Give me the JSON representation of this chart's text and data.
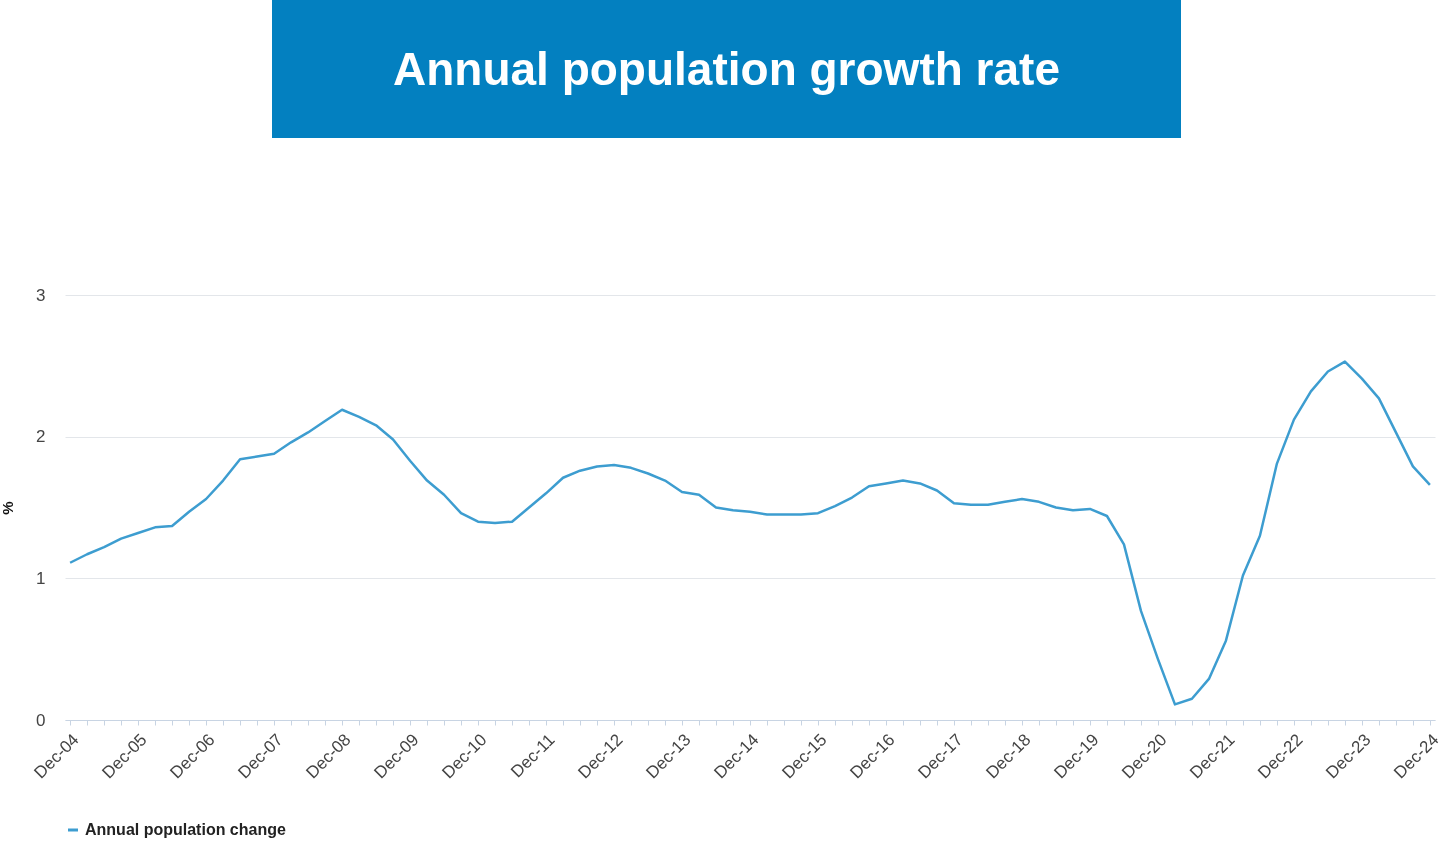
{
  "chart_data": {
    "type": "line",
    "title": "Annual population growth rate",
    "ylabel": "%",
    "categories": [
      "Dec-04",
      null,
      null,
      null,
      "Dec-05",
      null,
      null,
      null,
      "Dec-06",
      null,
      null,
      null,
      "Dec-07",
      null,
      null,
      null,
      "Dec-08",
      null,
      null,
      null,
      "Dec-09",
      null,
      null,
      null,
      "Dec-10",
      null,
      null,
      null,
      "Dec-11",
      null,
      null,
      null,
      "Dec-12",
      null,
      null,
      null,
      "Dec-13",
      null,
      null,
      null,
      "Dec-14",
      null,
      null,
      null,
      "Dec-15",
      null,
      null,
      null,
      "Dec-16",
      null,
      null,
      null,
      "Dec-17",
      null,
      null,
      null,
      "Dec-18",
      null,
      null,
      null,
      "Dec-19",
      null,
      null,
      null,
      "Dec-20",
      null,
      null,
      null,
      "Dec-21",
      null,
      null,
      null,
      "Dec-22",
      null,
      null,
      null,
      "Dec-23",
      null,
      null,
      null,
      "Dec-24"
    ],
    "series": [
      {
        "name": "Annual population change",
        "color": "#3d9dd0",
        "values": [
          1.11,
          1.17,
          1.22,
          1.28,
          1.32,
          1.36,
          1.37,
          1.47,
          1.56,
          1.69,
          1.84,
          1.86,
          1.88,
          1.96,
          2.03,
          2.11,
          2.19,
          2.14,
          2.08,
          1.98,
          1.83,
          1.69,
          1.59,
          1.46,
          1.4,
          1.39,
          1.4,
          1.5,
          1.6,
          1.71,
          1.76,
          1.79,
          1.8,
          1.78,
          1.74,
          1.69,
          1.61,
          1.59,
          1.5,
          1.48,
          1.47,
          1.45,
          1.45,
          1.45,
          1.46,
          1.51,
          1.57,
          1.65,
          1.67,
          1.69,
          1.67,
          1.62,
          1.53,
          1.52,
          1.52,
          1.54,
          1.56,
          1.54,
          1.5,
          1.48,
          1.49,
          1.44,
          1.24,
          0.77,
          0.43,
          0.11,
          0.15,
          0.29,
          0.56,
          1.02,
          1.3,
          1.81,
          2.12,
          2.32,
          2.46,
          2.53,
          2.41,
          2.27,
          2.03,
          1.79,
          1.66
        ]
      }
    ],
    "ylim": [
      0,
      3
    ],
    "yticks": [
      0,
      1,
      2,
      3
    ],
    "grid": "y",
    "legend": "bottom",
    "marker": "none",
    "line_style": "solid"
  }
}
